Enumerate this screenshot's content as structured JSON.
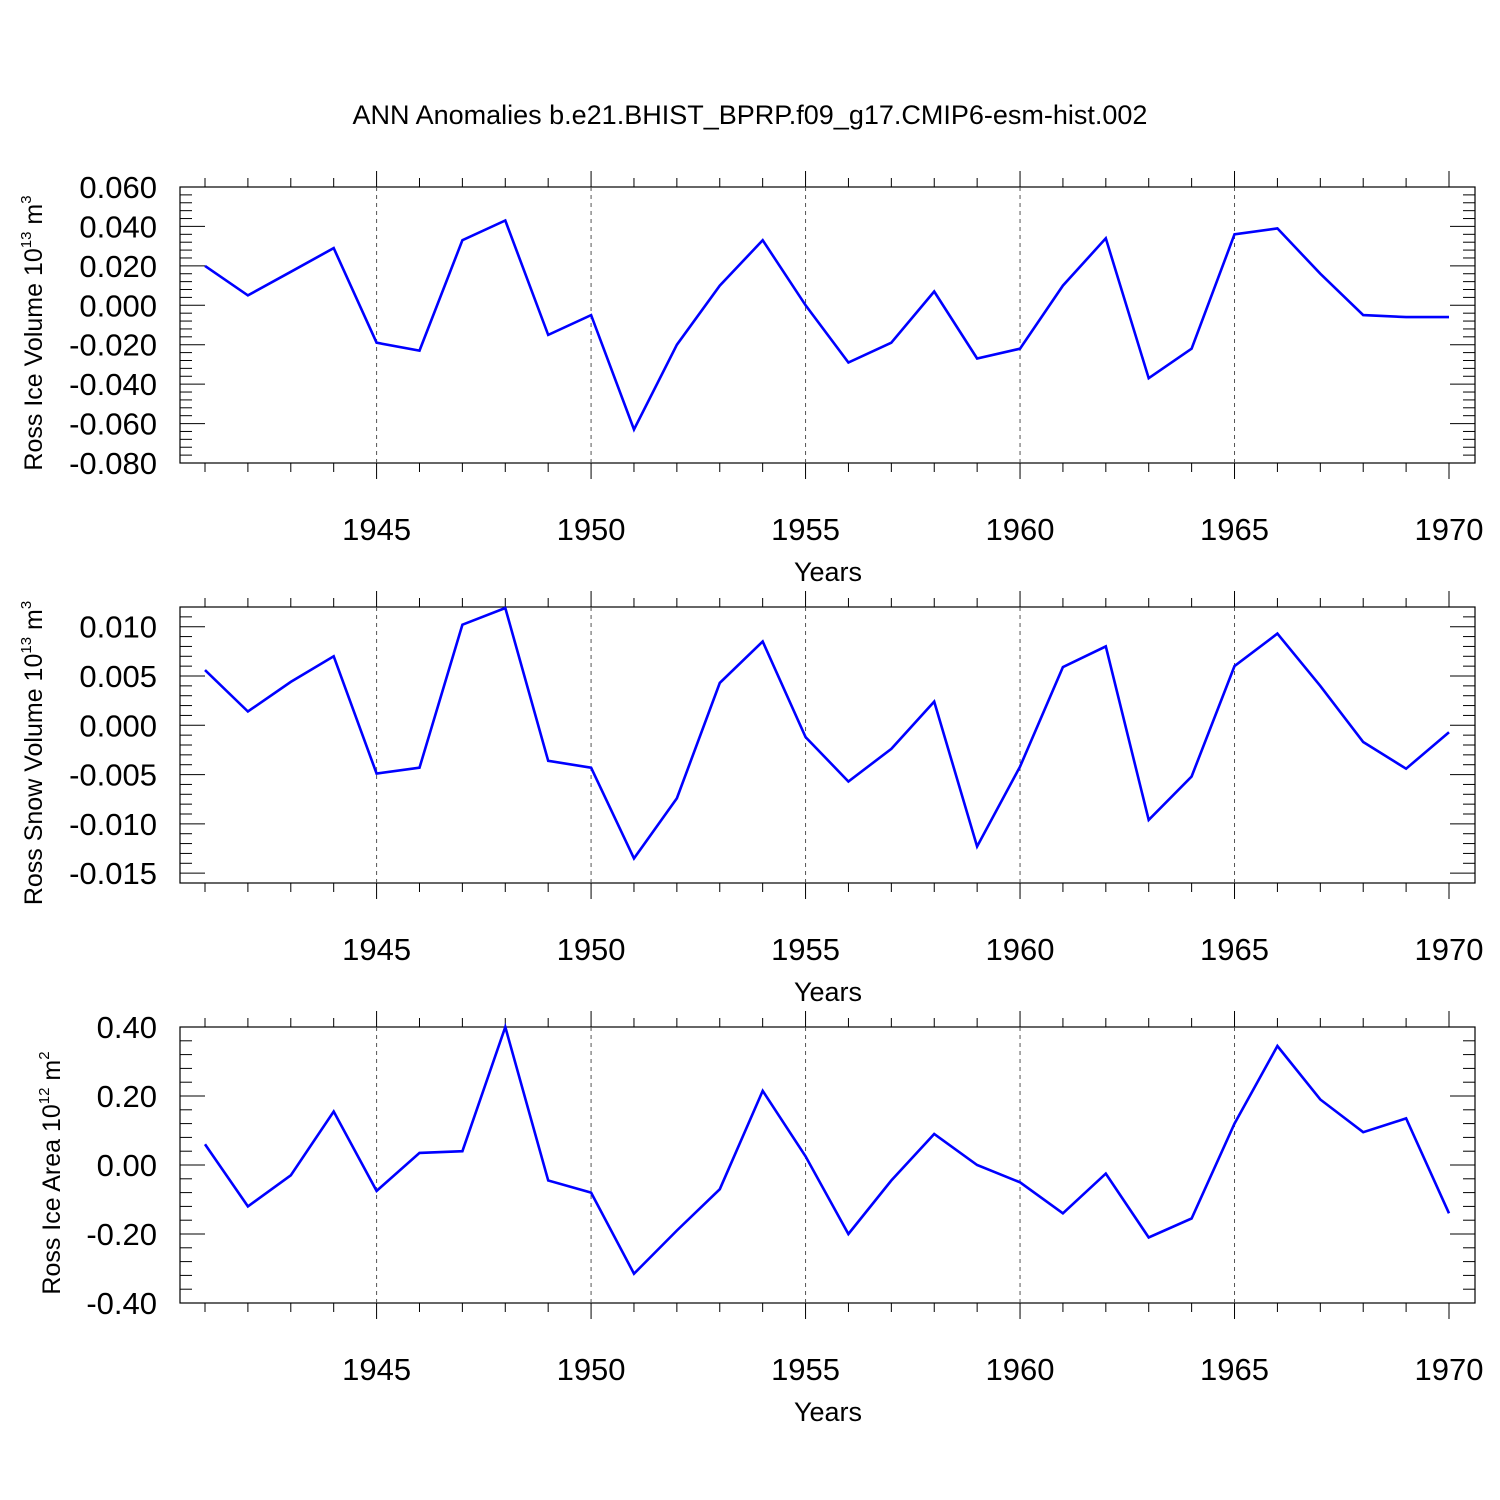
{
  "title": "ANN Anomalies b.e21.BHIST_BPRP.f09_g17.CMIP6-esm-hist.002",
  "colors": {
    "line": "#0000ff",
    "axis": "#000000",
    "grid": "#555555"
  },
  "chart_data": [
    {
      "type": "line",
      "ylabel": {
        "main": "Ross Ice Volume 10",
        "sup": "13",
        "unit": " m",
        "unit_sup": "3"
      },
      "xlabel": "Years",
      "xlim": [
        1941,
        1970
      ],
      "ylim": [
        -0.08,
        0.06
      ],
      "grid": "x-dashed",
      "xticks": [
        "1945",
        "1950",
        "1955",
        "1960",
        "1965",
        "1970"
      ],
      "yticks": [
        "0.060",
        "0.040",
        "0.020",
        "0.000",
        "-0.020",
        "-0.040",
        "-0.060",
        "-0.080"
      ],
      "x": [
        1941,
        1942,
        1943,
        1944,
        1945,
        1946,
        1947,
        1948,
        1949,
        1950,
        1951,
        1952,
        1953,
        1954,
        1955,
        1956,
        1957,
        1958,
        1959,
        1960,
        1961,
        1962,
        1963,
        1964,
        1965,
        1966,
        1967,
        1968,
        1969,
        1970
      ],
      "series": [
        {
          "values": [
            0.02,
            0.005,
            0.017,
            0.029,
            -0.019,
            -0.023,
            0.033,
            0.043,
            -0.015,
            -0.005,
            -0.063,
            -0.02,
            0.01,
            0.033,
            0.0,
            -0.029,
            -0.019,
            0.007,
            -0.027,
            -0.022,
            0.01,
            0.034,
            -0.037,
            -0.022,
            0.036,
            0.039,
            0.016,
            -0.005,
            -0.006,
            -0.006
          ]
        }
      ]
    },
    {
      "type": "line",
      "ylabel": {
        "main": "Ross Snow Volume 10",
        "sup": "13",
        "unit": " m",
        "unit_sup": "3"
      },
      "xlabel": "Years",
      "xlim": [
        1941,
        1970
      ],
      "ylim": [
        -0.016,
        0.012
      ],
      "grid": "x-dashed",
      "xticks": [
        "1945",
        "1950",
        "1955",
        "1960",
        "1965",
        "1970"
      ],
      "yticks": [
        "0.010",
        "0.005",
        "0.000",
        "-0.005",
        "-0.010",
        "-0.015"
      ],
      "x": [
        1941,
        1942,
        1943,
        1944,
        1945,
        1946,
        1947,
        1948,
        1949,
        1950,
        1951,
        1952,
        1953,
        1954,
        1955,
        1956,
        1957,
        1958,
        1959,
        1960,
        1961,
        1962,
        1963,
        1964,
        1965,
        1966,
        1967,
        1968,
        1969,
        1970
      ],
      "series": [
        {
          "values": [
            0.0056,
            0.0014,
            0.0044,
            0.007,
            -0.0049,
            -0.0043,
            0.0102,
            0.0119,
            -0.0036,
            -0.0043,
            -0.0135,
            -0.0074,
            0.0043,
            0.0085,
            -0.0012,
            -0.0057,
            -0.0024,
            0.0024,
            -0.0123,
            -0.0042,
            0.0059,
            0.008,
            -0.0096,
            -0.0052,
            0.006,
            0.0093,
            0.004,
            -0.0017,
            -0.0044,
            -0.0007
          ]
        }
      ]
    },
    {
      "type": "line",
      "ylabel": {
        "main": "Ross Ice Area 10",
        "sup": "12",
        "unit": " m",
        "unit_sup": "2"
      },
      "xlabel": "Years",
      "xlim": [
        1941,
        1970
      ],
      "ylim": [
        -0.4,
        0.4
      ],
      "grid": "x-dashed",
      "xticks": [
        "1945",
        "1950",
        "1955",
        "1960",
        "1965",
        "1970"
      ],
      "yticks": [
        "0.40",
        "0.20",
        "0.00",
        "-0.20",
        "-0.40"
      ],
      "x": [
        1941,
        1942,
        1943,
        1944,
        1945,
        1946,
        1947,
        1948,
        1949,
        1950,
        1951,
        1952,
        1953,
        1954,
        1955,
        1956,
        1957,
        1958,
        1959,
        1960,
        1961,
        1962,
        1963,
        1964,
        1965,
        1966,
        1967,
        1968,
        1969,
        1970
      ],
      "series": [
        {
          "values": [
            0.06,
            -0.12,
            -0.03,
            0.155,
            -0.075,
            0.035,
            0.04,
            0.4,
            -0.045,
            -0.08,
            -0.315,
            -0.19,
            -0.07,
            0.215,
            0.025,
            -0.2,
            -0.045,
            0.09,
            0.0,
            -0.05,
            -0.14,
            -0.025,
            -0.21,
            -0.155,
            0.12,
            0.345,
            0.19,
            0.095,
            0.135,
            -0.14
          ]
        }
      ]
    }
  ]
}
